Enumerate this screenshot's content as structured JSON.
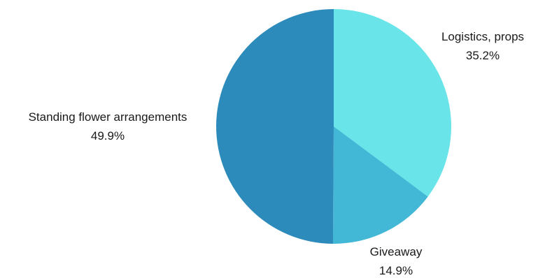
{
  "chart_data": {
    "type": "pie",
    "slices": [
      {
        "label": "Logistics, props",
        "value": 35.2,
        "value_label": "35.2%",
        "color": "#69e4e8"
      },
      {
        "label": "Giveaway",
        "value": 14.9,
        "value_label": "14.9%",
        "color": "#42b8d6"
      },
      {
        "label": "Standing flower arrangements",
        "value": 49.9,
        "value_label": "49.9%",
        "color": "#2d8bbb"
      }
    ],
    "start_angle": "12 o'clock",
    "direction": "clockwise",
    "legend": "none"
  }
}
